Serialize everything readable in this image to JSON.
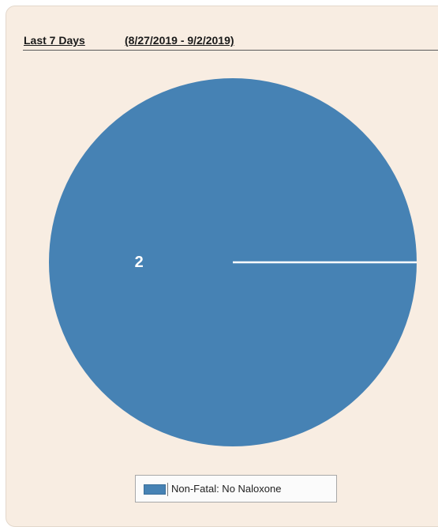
{
  "header": {
    "title": "Last 7 Days",
    "date_range": "(8/27/2019 - 9/2/2019)"
  },
  "chart_data": {
    "type": "pie",
    "categories": [
      "Non-Fatal: No Naloxone"
    ],
    "values": [
      2
    ],
    "data_labels": [
      "2"
    ],
    "colors": [
      "#4682b4"
    ],
    "legend_position": "bottom"
  },
  "legend": {
    "items": [
      {
        "label": "Non-Fatal: No Naloxone",
        "color": "#4682b4"
      }
    ]
  }
}
